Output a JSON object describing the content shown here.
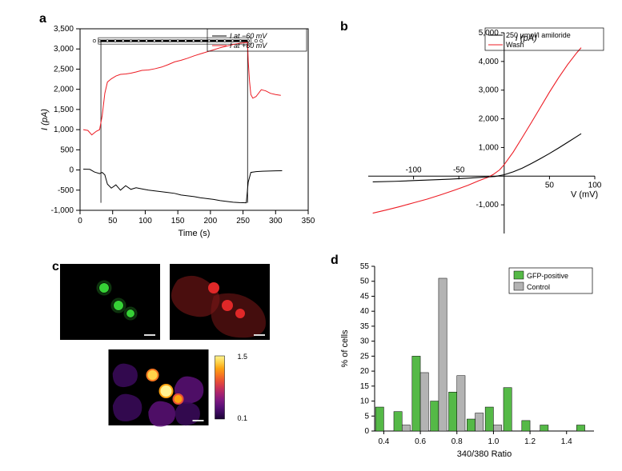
{
  "panelA": {
    "label": "a",
    "type": "line",
    "xlabel": "Time (s)",
    "ylabel": "I (pA)",
    "title_fontsize": 11,
    "label_fontsize": 11,
    "xlim": [
      0,
      350
    ],
    "ylim": [
      -1000,
      3500
    ],
    "xtick_step": 50,
    "ytick_step": 500,
    "background_color": "#ffffff",
    "grid_color": "#000000",
    "legend1": "I at −60 mV",
    "legend2": "I at +60 mV",
    "series1_color": "#000000",
    "series2_color": "#ed1c24",
    "vertical_lines_x": [
      32,
      257
    ],
    "bar_y": 3200,
    "series1_xy": [
      [
        5,
        20
      ],
      [
        15,
        15
      ],
      [
        22,
        -50
      ],
      [
        30,
        -90
      ],
      [
        34,
        -60
      ],
      [
        38,
        -120
      ],
      [
        42,
        -350
      ],
      [
        48,
        -450
      ],
      [
        55,
        -370
      ],
      [
        62,
        -500
      ],
      [
        70,
        -390
      ],
      [
        78,
        -480
      ],
      [
        86,
        -440
      ],
      [
        95,
        -470
      ],
      [
        105,
        -500
      ],
      [
        115,
        -520
      ],
      [
        125,
        -540
      ],
      [
        135,
        -560
      ],
      [
        145,
        -580
      ],
      [
        155,
        -620
      ],
      [
        165,
        -640
      ],
      [
        175,
        -660
      ],
      [
        185,
        -690
      ],
      [
        195,
        -710
      ],
      [
        205,
        -730
      ],
      [
        215,
        -760
      ],
      [
        225,
        -780
      ],
      [
        235,
        -800
      ],
      [
        245,
        -810
      ],
      [
        255,
        -815
      ],
      [
        258,
        -300
      ],
      [
        262,
        -60
      ],
      [
        270,
        -40
      ],
      [
        280,
        -30
      ],
      [
        290,
        -25
      ],
      [
        300,
        -20
      ],
      [
        310,
        -18
      ]
    ],
    "series2_xy": [
      [
        5,
        1000
      ],
      [
        12,
        980
      ],
      [
        18,
        870
      ],
      [
        25,
        960
      ],
      [
        30,
        1000
      ],
      [
        34,
        1350
      ],
      [
        38,
        1900
      ],
      [
        42,
        2180
      ],
      [
        48,
        2260
      ],
      [
        55,
        2330
      ],
      [
        62,
        2370
      ],
      [
        70,
        2380
      ],
      [
        78,
        2400
      ],
      [
        86,
        2430
      ],
      [
        95,
        2470
      ],
      [
        105,
        2480
      ],
      [
        115,
        2510
      ],
      [
        125,
        2550
      ],
      [
        135,
        2610
      ],
      [
        145,
        2680
      ],
      [
        155,
        2720
      ],
      [
        165,
        2770
      ],
      [
        175,
        2830
      ],
      [
        185,
        2880
      ],
      [
        195,
        2930
      ],
      [
        205,
        2980
      ],
      [
        215,
        3030
      ],
      [
        225,
        3070
      ],
      [
        235,
        3110
      ],
      [
        245,
        3140
      ],
      [
        255,
        3160
      ],
      [
        257,
        3160
      ],
      [
        258,
        2700
      ],
      [
        260,
        2200
      ],
      [
        262,
        1870
      ],
      [
        265,
        1780
      ],
      [
        270,
        1820
      ],
      [
        278,
        1990
      ],
      [
        285,
        1960
      ],
      [
        292,
        1900
      ],
      [
        300,
        1870
      ],
      [
        308,
        1850
      ]
    ]
  },
  "panelB": {
    "label": "b",
    "type": "line",
    "xlabel": "V (mV)",
    "ylabel": "I (pA)",
    "label_fontsize": 11,
    "xlim": [
      -150,
      100
    ],
    "ylim": [
      -2000,
      5000
    ],
    "xtick_step": 50,
    "ytick_step": 1000,
    "legend1": "250 μmol/l amiloride",
    "legend2": "Wash",
    "series1_color": "#000000",
    "series2_color": "#ed1c24",
    "series1_xy": [
      [
        -145,
        -200
      ],
      [
        -120,
        -180
      ],
      [
        -100,
        -155
      ],
      [
        -80,
        -130
      ],
      [
        -60,
        -105
      ],
      [
        -40,
        -70
      ],
      [
        -30,
        -50
      ],
      [
        -20,
        -30
      ],
      [
        -10,
        -10
      ],
      [
        0,
        50
      ],
      [
        10,
        150
      ],
      [
        20,
        280
      ],
      [
        30,
        440
      ],
      [
        40,
        610
      ],
      [
        50,
        790
      ],
      [
        60,
        980
      ],
      [
        70,
        1180
      ],
      [
        80,
        1380
      ],
      [
        85,
        1480
      ]
    ],
    "series2_xy": [
      [
        -145,
        -1290
      ],
      [
        -130,
        -1180
      ],
      [
        -115,
        -1060
      ],
      [
        -100,
        -930
      ],
      [
        -85,
        -800
      ],
      [
        -70,
        -650
      ],
      [
        -55,
        -490
      ],
      [
        -40,
        -320
      ],
      [
        -28,
        -160
      ],
      [
        -18,
        -40
      ],
      [
        -12,
        60
      ],
      [
        -5,
        220
      ],
      [
        0,
        400
      ],
      [
        10,
        840
      ],
      [
        20,
        1350
      ],
      [
        30,
        1870
      ],
      [
        40,
        2400
      ],
      [
        50,
        2930
      ],
      [
        60,
        3430
      ],
      [
        70,
        3890
      ],
      [
        80,
        4300
      ],
      [
        85,
        4480
      ]
    ]
  },
  "panelC": {
    "label": "c",
    "background_color": "#000000",
    "scale_values": [
      "1.5",
      "0.1"
    ],
    "colormap": [
      "#1a0433",
      "#3b0a5c",
      "#5c1178",
      "#801980",
      "#a62270",
      "#cb3355",
      "#e84f35",
      "#f77820",
      "#fca311",
      "#fed34a",
      "#fef392"
    ],
    "green_color": "#36d136",
    "red_color": "#e02828",
    "dark_red": "#7b1818"
  },
  "panelD": {
    "label": "d",
    "type": "bar",
    "xlabel": "340/380 Ratio",
    "ylabel": "% of cells",
    "label_fontsize": 11,
    "xlim": [
      0.35,
      1.55
    ],
    "ylim": [
      0,
      55
    ],
    "ytick_step": 5,
    "xtick_step": 0.2,
    "bar_width": 0.045,
    "legend_gfp": "GFP-positive",
    "legend_ctrl": "Control",
    "gfp_color": "#55b947",
    "ctrl_color": "#b3b3b3",
    "categories": [
      0.4,
      0.5,
      0.6,
      0.7,
      0.8,
      0.9,
      1.0,
      1.1,
      1.2,
      1.3,
      1.4,
      1.5
    ],
    "gfp_values": [
      8,
      6.5,
      25,
      10,
      13,
      4,
      8,
      14.5,
      3.5,
      2,
      0,
      2
    ],
    "ctrl_values": [
      0,
      2,
      19.5,
      51,
      18.5,
      6,
      2,
      0,
      0,
      0,
      0,
      0
    ]
  }
}
